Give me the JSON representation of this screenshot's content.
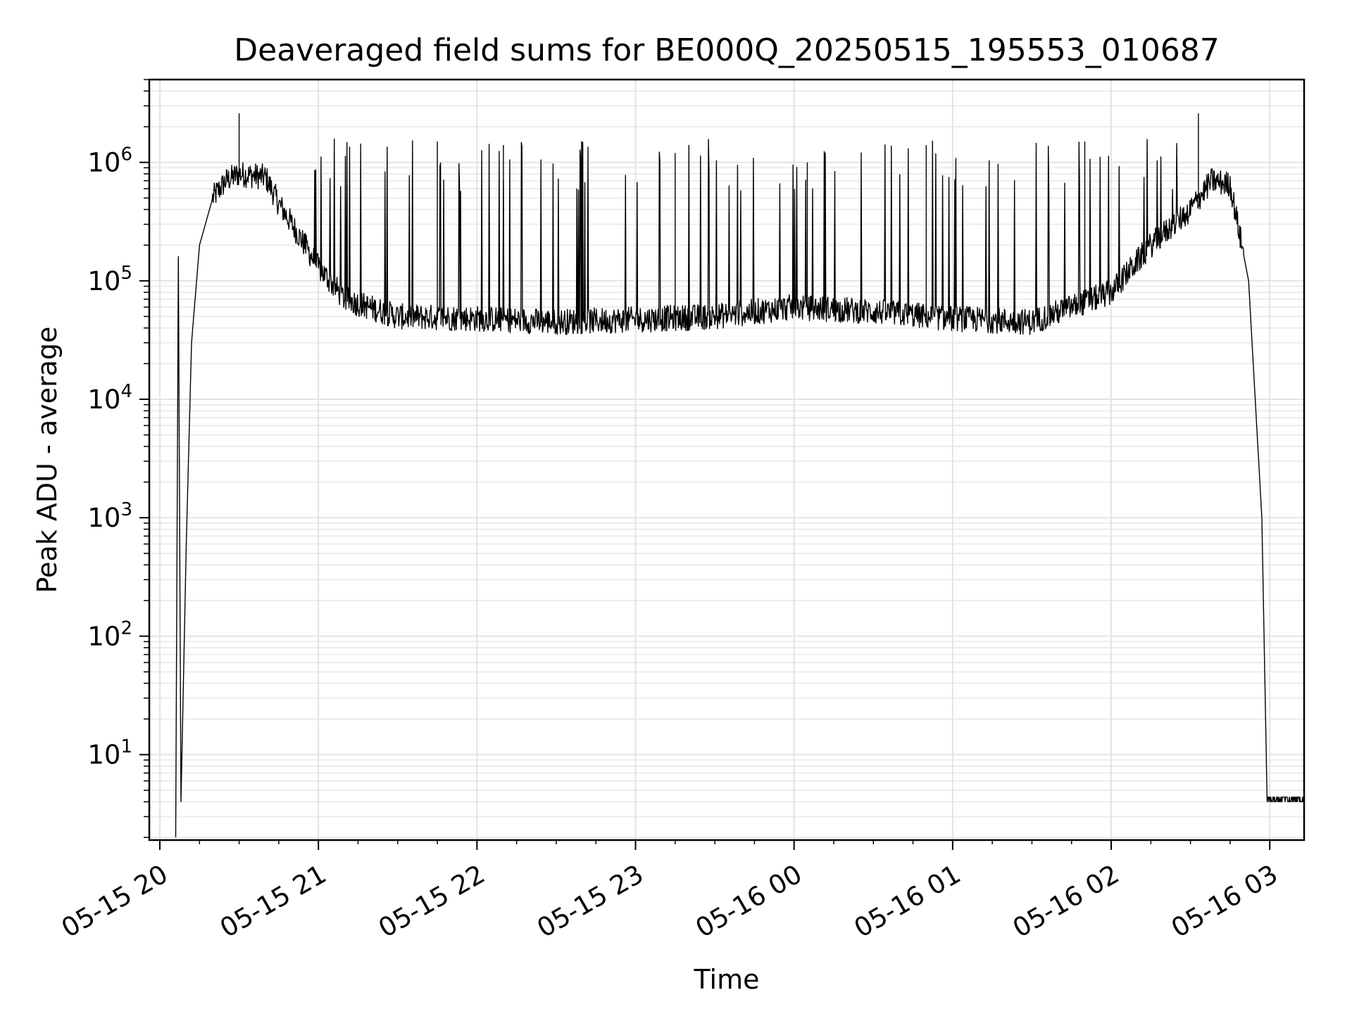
{
  "chart_data": {
    "type": "line",
    "title": "Deaveraged field sums for BE000Q_20250515_195553_010687",
    "xlabel": "Time",
    "ylabel": "Peak ADU - average",
    "yscale": "log",
    "ylim": [
      1.9,
      5000000
    ],
    "xlim": [
      "2025-05-15 19:56",
      "2025-05-16 03:13"
    ],
    "grid": true,
    "x_ticks": [
      {
        "t": "2025-05-15 20:00",
        "label": "05-15 20"
      },
      {
        "t": "2025-05-15 21:00",
        "label": "05-15 21"
      },
      {
        "t": "2025-05-15 22:00",
        "label": "05-15 22"
      },
      {
        "t": "2025-05-15 23:00",
        "label": "05-15 23"
      },
      {
        "t": "2025-05-16 00:00",
        "label": "05-16 00"
      },
      {
        "t": "2025-05-16 01:00",
        "label": "05-16 01"
      },
      {
        "t": "2025-05-16 02:00",
        "label": "05-16 02"
      },
      {
        "t": "2025-05-16 03:00",
        "label": "05-16 03"
      }
    ],
    "y_ticks": [
      {
        "exp": 1,
        "base": "10",
        "sup": "1"
      },
      {
        "exp": 2,
        "base": "10",
        "sup": "2"
      },
      {
        "exp": 3,
        "base": "10",
        "sup": "3"
      },
      {
        "exp": 4,
        "base": "10",
        "sup": "4"
      },
      {
        "exp": 5,
        "base": "10",
        "sup": "5"
      },
      {
        "exp": 6,
        "base": "10",
        "sup": "6"
      }
    ],
    "series": [
      {
        "color": "#000000",
        "points": [
          [
            "2025-05-15 20:06",
            2
          ],
          [
            "2025-05-15 20:07",
            160000
          ],
          [
            "2025-05-15 20:08",
            4
          ],
          [
            "2025-05-15 20:10",
            600
          ],
          [
            "2025-05-15 20:12",
            30000
          ],
          [
            "2025-05-15 20:15",
            200000
          ],
          [
            "2025-05-15 20:20",
            500000
          ],
          [
            "2025-05-15 20:25",
            700000
          ],
          [
            "2025-05-15 20:30",
            800000
          ],
          [
            "2025-05-15 20:40",
            750000
          ],
          [
            "2025-05-15 20:45",
            450000
          ],
          [
            "2025-05-15 20:50",
            300000
          ],
          [
            "2025-05-15 21:00",
            130000
          ],
          [
            "2025-05-15 21:10",
            70000
          ],
          [
            "2025-05-15 21:30",
            50000
          ],
          [
            "2025-05-15 22:00",
            48000
          ],
          [
            "2025-05-15 22:30",
            45000
          ],
          [
            "2025-05-15 23:00",
            47000
          ],
          [
            "2025-05-15 23:30",
            50000
          ],
          [
            "2025-05-16 00:00",
            60000
          ],
          [
            "2025-05-16 00:30",
            55000
          ],
          [
            "2025-05-16 01:00",
            48000
          ],
          [
            "2025-05-16 01:30",
            45000
          ],
          [
            "2025-05-16 02:00",
            80000
          ],
          [
            "2025-05-16 02:15",
            200000
          ],
          [
            "2025-05-16 02:30",
            400000
          ],
          [
            "2025-05-16 02:38",
            700000
          ],
          [
            "2025-05-16 02:45",
            650000
          ],
          [
            "2025-05-16 02:52",
            100000
          ],
          [
            "2025-05-16 02:57",
            1000
          ],
          [
            "2025-05-16 02:59",
            4
          ],
          [
            "2025-05-16 03:13",
            4
          ]
        ],
        "spikes": [
          {
            "t": "2025-05-15 20:30",
            "peak": 2600000
          },
          {
            "t": "2025-05-15 21:45",
            "peak": 1500000
          },
          {
            "t": "2025-05-15 22:10",
            "peak": 1400000
          },
          {
            "t": "2025-05-15 22:40",
            "peak": 1400000
          },
          {
            "t": "2025-05-15 23:15",
            "peak": 1200000
          },
          {
            "t": "2025-05-16 00:05",
            "peak": 1000000
          },
          {
            "t": "2025-05-16 00:50",
            "peak": 1400000
          },
          {
            "t": "2025-05-16 01:50",
            "peak": 1500000
          },
          {
            "t": "2025-05-16 02:33",
            "peak": 2600000
          }
        ]
      }
    ]
  }
}
